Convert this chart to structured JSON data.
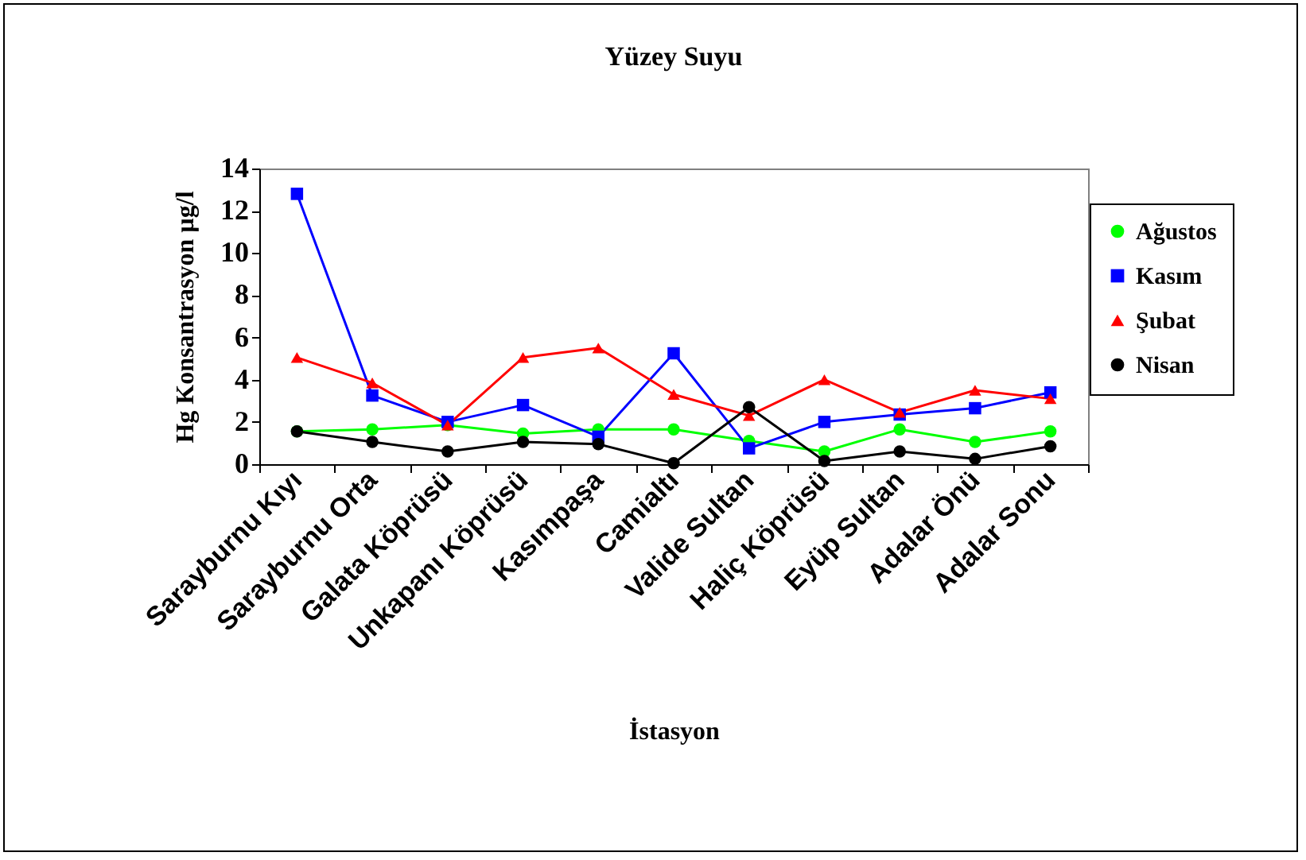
{
  "chart_data": {
    "type": "line",
    "title": "Yüzey Suyu",
    "xlabel": "İstasyon",
    "ylabel": "Hg Konsantrasyon µg/l",
    "categories": [
      "Sarayburnu Kıyı",
      "Sarayburnu Orta",
      "Galata Köprüsü",
      "Unkapanı Köprüsü",
      "Kasımpaşa",
      "Camialtı",
      "Valide Sultan",
      "Haliç Köprüsü",
      "Eyüp Sultan",
      "Adalar Önü",
      "Adalar Sonu"
    ],
    "series": [
      {
        "name": "Ağustos",
        "color": "#00ff00",
        "marker": "circle",
        "values": [
          1.55,
          1.65,
          1.85,
          1.45,
          1.65,
          1.65,
          1.1,
          0.6,
          1.65,
          1.05,
          1.55
        ]
      },
      {
        "name": "Kasım",
        "color": "#0000ff",
        "marker": "square",
        "values": [
          12.8,
          3.25,
          2.0,
          2.8,
          1.3,
          5.25,
          0.75,
          2.0,
          2.35,
          2.65,
          3.4
        ]
      },
      {
        "name": "Şubat",
        "color": "#ff0000",
        "marker": "triangle",
        "values": [
          5.05,
          3.85,
          1.85,
          5.05,
          5.5,
          3.3,
          2.3,
          4.0,
          2.45,
          3.5,
          3.1
        ]
      },
      {
        "name": "Nisan",
        "color": "#000000",
        "marker": "circle",
        "values": [
          1.55,
          1.05,
          0.6,
          1.05,
          0.95,
          0.05,
          2.7,
          0.15,
          0.6,
          0.25,
          0.85
        ]
      }
    ],
    "ylim": [
      0,
      14
    ],
    "yticks": [
      0,
      2,
      4,
      6,
      8,
      10,
      12,
      14
    ],
    "grid": false,
    "legend": "right",
    "line_style": "solid"
  }
}
